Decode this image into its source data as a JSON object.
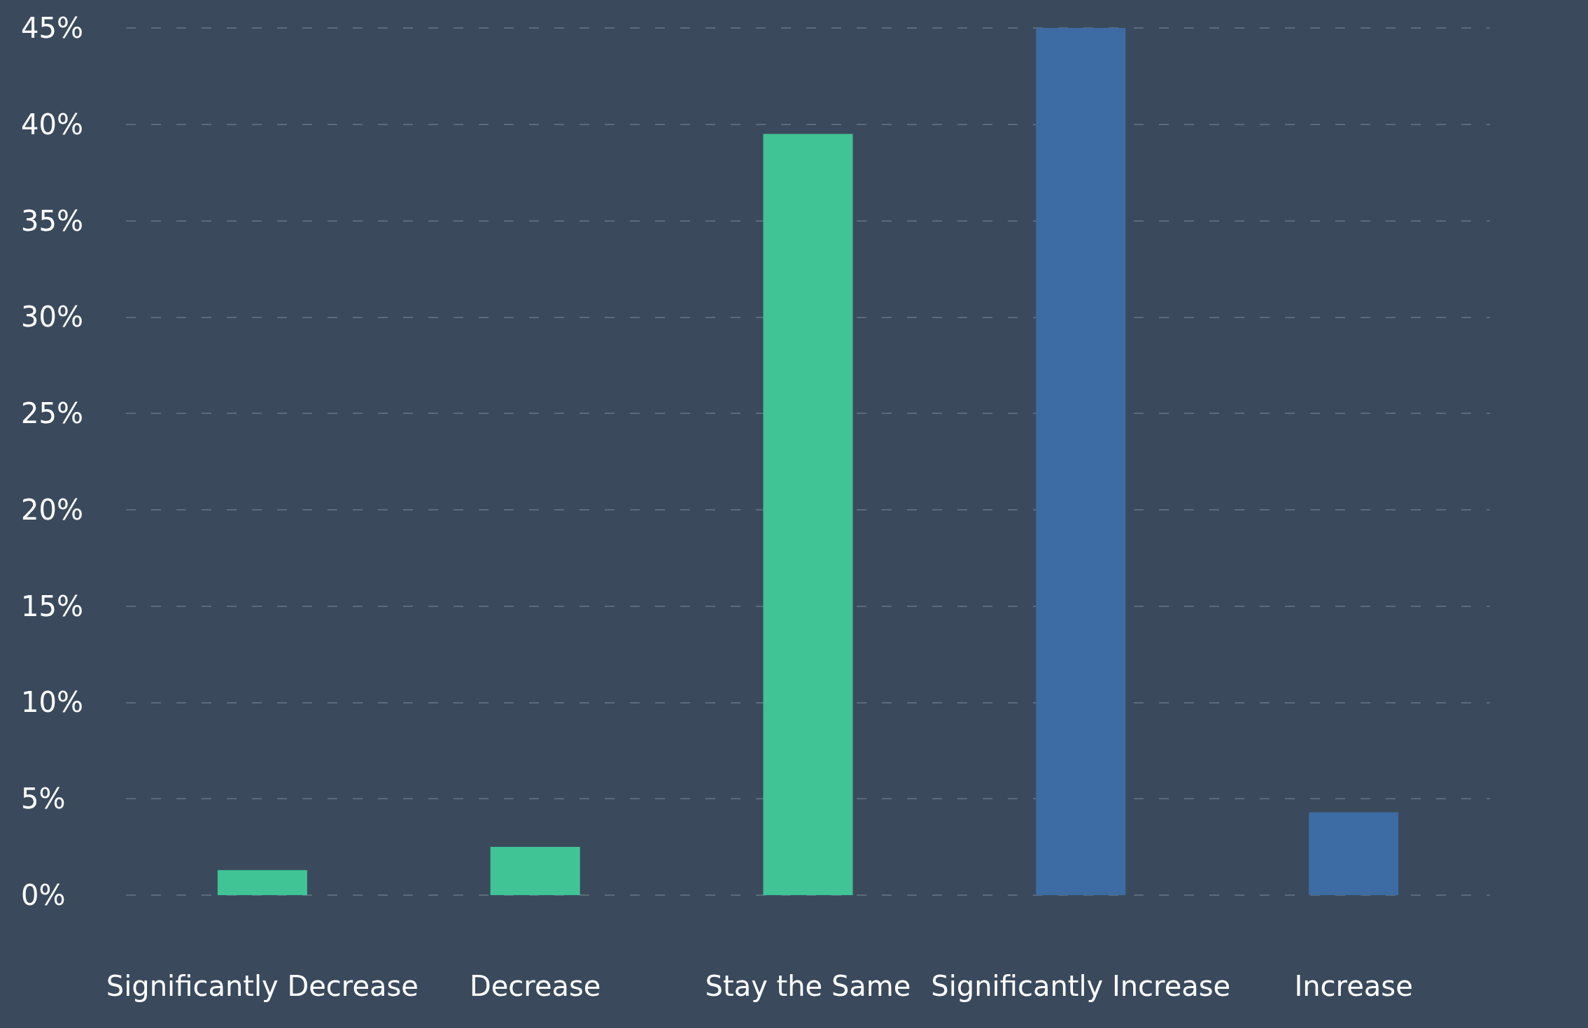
{
  "chart_data": {
    "type": "bar",
    "categories": [
      "Significantly Decrease",
      "Decrease",
      "Stay the Same",
      "Significantly Increase",
      "Increase"
    ],
    "values": [
      1.3,
      2.5,
      39.5,
      45,
      4.3
    ],
    "colors": [
      "#40c495",
      "#40c495",
      "#40c495",
      "#3d6ba3",
      "#3d6ba3"
    ],
    "ylim": [
      0,
      45
    ],
    "yticks": [
      {
        "value": 0,
        "label": "0%"
      },
      {
        "value": 5,
        "label": "5%"
      },
      {
        "value": 10,
        "label": "10%"
      },
      {
        "value": 15,
        "label": "15%"
      },
      {
        "value": 20,
        "label": "20%"
      },
      {
        "value": 25,
        "label": "25%"
      },
      {
        "value": 30,
        "label": "30%"
      },
      {
        "value": 35,
        "label": "35%"
      },
      {
        "value": 40,
        "label": "40%"
      },
      {
        "value": 45,
        "label": "45%"
      }
    ],
    "grid": "y"
  }
}
